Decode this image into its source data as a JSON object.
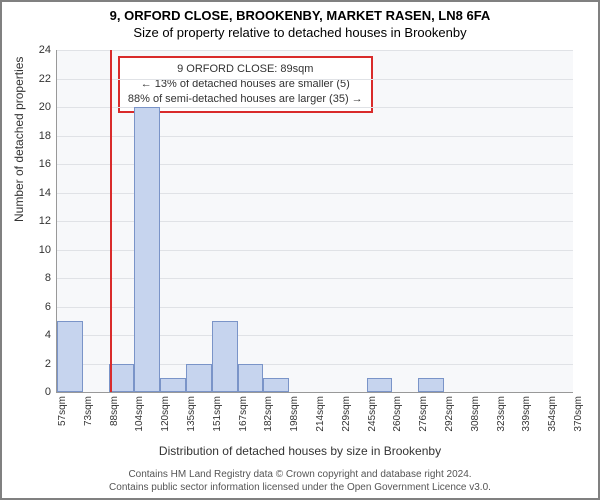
{
  "titles": {
    "line1": "9, ORFORD CLOSE, BROOKENBY, MARKET RASEN, LN8 6FA",
    "line2": "Size of property relative to detached houses in Brookenby"
  },
  "chart": {
    "type": "histogram",
    "background_color": "#f7f8fa",
    "bar_fill": "#c6d4ee",
    "bar_stroke": "#7a94c8",
    "grid_color": "#e0e2e6",
    "marker_color": "#d92b2b",
    "y": {
      "label": "Number of detached properties",
      "min": 0,
      "max": 24,
      "ticks": [
        0,
        2,
        4,
        6,
        8,
        10,
        12,
        14,
        16,
        18,
        20,
        22,
        24
      ]
    },
    "x": {
      "label": "Distribution of detached houses by size in Brookenby",
      "tick_labels": [
        "57sqm",
        "73sqm",
        "88sqm",
        "104sqm",
        "120sqm",
        "135sqm",
        "151sqm",
        "167sqm",
        "182sqm",
        "198sqm",
        "214sqm",
        "229sqm",
        "245sqm",
        "260sqm",
        "276sqm",
        "292sqm",
        "308sqm",
        "323sqm",
        "339sqm",
        "354sqm",
        "370sqm"
      ]
    },
    "bars": [
      {
        "slot": 0,
        "value": 5
      },
      {
        "slot": 1,
        "value": 0
      },
      {
        "slot": 2,
        "value": 2
      },
      {
        "slot": 3,
        "value": 20
      },
      {
        "slot": 4,
        "value": 1
      },
      {
        "slot": 5,
        "value": 2
      },
      {
        "slot": 6,
        "value": 5
      },
      {
        "slot": 7,
        "value": 2
      },
      {
        "slot": 8,
        "value": 1
      },
      {
        "slot": 12,
        "value": 1
      },
      {
        "slot": 14,
        "value": 1
      }
    ],
    "marker": {
      "slot_position": 2.05
    },
    "info_box": {
      "line1": "9 ORFORD CLOSE: 89sqm",
      "line2": "← 13% of detached houses are smaller (5)",
      "line3": "88% of semi-detached houses are larger (35) →"
    }
  },
  "footer": {
    "line1": "Contains HM Land Registry data © Crown copyright and database right 2024.",
    "line2": "Contains public sector information licensed under the Open Government Licence v3.0."
  }
}
